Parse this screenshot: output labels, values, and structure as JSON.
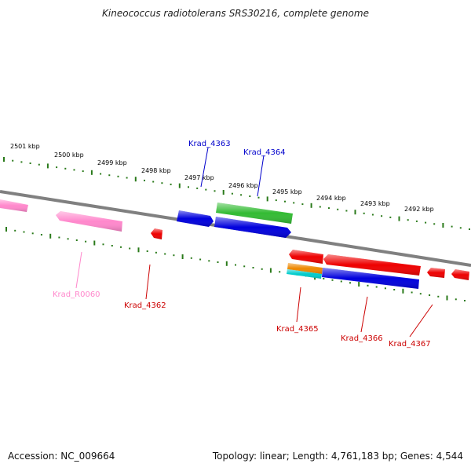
{
  "title": "Kineococcus radiotolerans SRS30216, complete genome",
  "footer": {
    "accession": "Accession: NC_009664",
    "topology": "Topology: linear; Length: 4,761,183 bp; Genes: 4,544"
  },
  "scale_labels": [
    "2501 kbp",
    "2500 kbp",
    "2499 kbp",
    "2498 kbp",
    "2497 kbp",
    "2496 kbp",
    "2495 kbp",
    "2494 kbp",
    "2493 kbp",
    "2492 kbp"
  ],
  "genes": [
    {
      "label": "",
      "strand": "+",
      "color": "#ff88cc",
      "kind": "pseudo"
    },
    {
      "label": "Krad_R0060",
      "strand": "-",
      "color": "#ff88cc",
      "kind": "rna"
    },
    {
      "label": "Krad_4362",
      "strand": "-",
      "color": "#ee0000",
      "kind": "cds"
    },
    {
      "label": "Krad_4363",
      "strand": "+",
      "color": "#0000cc",
      "kind": "cds"
    },
    {
      "label": "",
      "strand": "+",
      "color": "#33bb33",
      "kind": "cds"
    },
    {
      "label": "Krad_4364",
      "strand": "+",
      "color": "#0000cc",
      "kind": "cds"
    },
    {
      "label": "Krad_4365",
      "strand": "-",
      "color": "#ee0000",
      "kind": "cds"
    },
    {
      "label": "",
      "strand": "-",
      "color": "#ee8800",
      "kind": "cds"
    },
    {
      "label": "",
      "strand": "-",
      "color": "#00cccc",
      "kind": "cds"
    },
    {
      "label": "",
      "strand": "-",
      "color": "#ee0000",
      "kind": "cds"
    },
    {
      "label": "Krad_4366",
      "strand": "-",
      "color": "#0000cc",
      "kind": "cds"
    },
    {
      "label": "Krad_4367",
      "strand": "-",
      "color": "#ee0000",
      "kind": "cds"
    },
    {
      "label": "",
      "strand": "-",
      "color": "#ee0000",
      "kind": "cds"
    }
  ],
  "colors": {
    "backbone": "#808080",
    "ticks": "#2a7a1a",
    "label_blue": "#0000cc",
    "label_red": "#cc0000",
    "label_pink": "#ff88cc"
  }
}
